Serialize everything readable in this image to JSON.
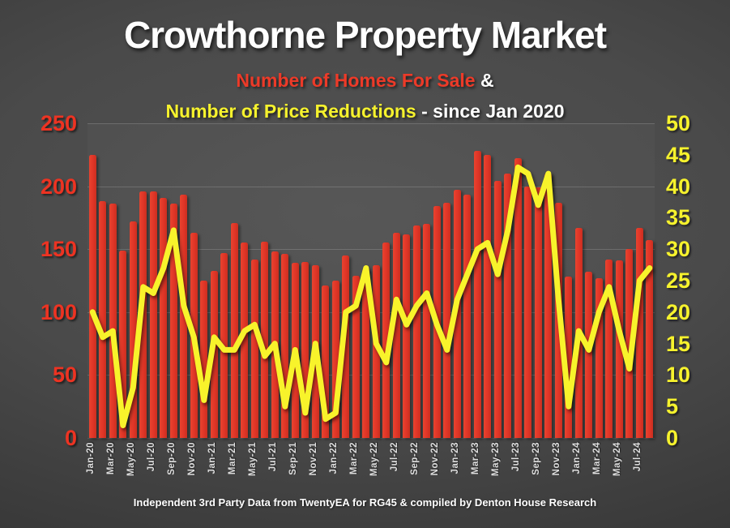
{
  "title": "Crowthorne Property Market",
  "subtitle": {
    "homes_label": "Number of Homes For Sale",
    "amp": " &",
    "reductions_label": "Number of Price Reductions",
    "since": " - since Jan 2020"
  },
  "footer": "Independent 3rd Party Data from TwentyEA for RG45 & compiled by Denton House Research",
  "colors": {
    "bar_red": "#e03527",
    "line_yellow": "#f8f32b",
    "left_axis_red": "#ed3322",
    "right_axis_yellow": "#f6f22d",
    "title_white": "#ffffff",
    "background_gray": "#4a4a4a"
  },
  "chart_data": {
    "type": "bar",
    "subtype": "combo-bar-line-dual-axis",
    "title": "Crowthorne Property Market",
    "grid": true,
    "legend_position": "none",
    "categories": [
      "Jan-20",
      "Feb-20",
      "Mar-20",
      "Apr-20",
      "May-20",
      "Jun-20",
      "Jul-20",
      "Aug-20",
      "Sep-20",
      "Oct-20",
      "Nov-20",
      "Dec-20",
      "Jan-21",
      "Feb-21",
      "Mar-21",
      "Apr-21",
      "May-21",
      "Jun-21",
      "Jul-21",
      "Aug-21",
      "Sep-21",
      "Oct-21",
      "Nov-21",
      "Dec-21",
      "Jan-22",
      "Feb-22",
      "Mar-22",
      "Apr-22",
      "May-22",
      "Jun-22",
      "Jul-22",
      "Aug-22",
      "Sep-22",
      "Oct-22",
      "Nov-22",
      "Dec-22",
      "Jan-23",
      "Feb-23",
      "Mar-23",
      "Apr-23",
      "May-23",
      "Jun-23",
      "Jul-23",
      "Aug-23",
      "Sep-23",
      "Oct-23",
      "Nov-23",
      "Dec-23",
      "Jan-24",
      "Feb-24",
      "Mar-24",
      "Apr-24",
      "May-24",
      "Jun-24",
      "Jul-24",
      "Aug-24"
    ],
    "x_tick_labels": [
      "Jan-20",
      "Mar-20",
      "May-20",
      "Jul-20",
      "Sep-20",
      "Nov-20",
      "Jan-21",
      "Mar-21",
      "May-21",
      "Jul-21",
      "Sep-21",
      "Nov-21",
      "Jan-22",
      "Mar-22",
      "May-22",
      "Jul-22",
      "Sep-22",
      "Nov-22",
      "Jan-23",
      "Mar-23",
      "May-23",
      "Jul-23",
      "Sep-23",
      "Nov-23",
      "Jan-24",
      "Mar-24",
      "May-24",
      "Jul-24"
    ],
    "series": [
      {
        "name": "Number of Homes For Sale",
        "type": "bar",
        "axis": "left",
        "color": "#e03527",
        "values": [
          225,
          188,
          186,
          149,
          172,
          196,
          196,
          191,
          186,
          193,
          163,
          125,
          133,
          147,
          171,
          155,
          142,
          156,
          148,
          146,
          139,
          140,
          137,
          121,
          125,
          145,
          129,
          134,
          137,
          155,
          163,
          162,
          169,
          170,
          184,
          187,
          197,
          193,
          228,
          225,
          204,
          210,
          222,
          200,
          199,
          210,
          187,
          128,
          167,
          132,
          127,
          142,
          141,
          150,
          167,
          157
        ]
      },
      {
        "name": "Number of Price Reductions",
        "type": "line",
        "axis": "right",
        "color": "#f8f32b",
        "values": [
          20,
          16,
          17,
          2,
          8,
          24,
          23,
          27,
          33,
          21,
          16,
          6,
          16,
          14,
          14,
          17,
          18,
          13,
          15,
          5,
          14,
          4,
          15,
          3,
          4,
          20,
          21,
          27,
          15,
          12,
          22,
          18,
          21,
          23,
          18,
          14,
          22,
          26,
          30,
          31,
          26,
          33,
          43,
          42,
          37,
          42,
          22,
          5,
          17,
          14,
          20,
          24,
          17,
          11,
          25,
          27
        ]
      }
    ],
    "left_axis": {
      "min": 0,
      "max": 250,
      "step": 50,
      "ticks": [
        0,
        50,
        100,
        150,
        200,
        250
      ]
    },
    "right_axis": {
      "min": 0,
      "max": 50,
      "step": 5,
      "ticks": [
        0,
        5,
        10,
        15,
        20,
        25,
        30,
        35,
        40,
        45,
        50
      ]
    }
  }
}
